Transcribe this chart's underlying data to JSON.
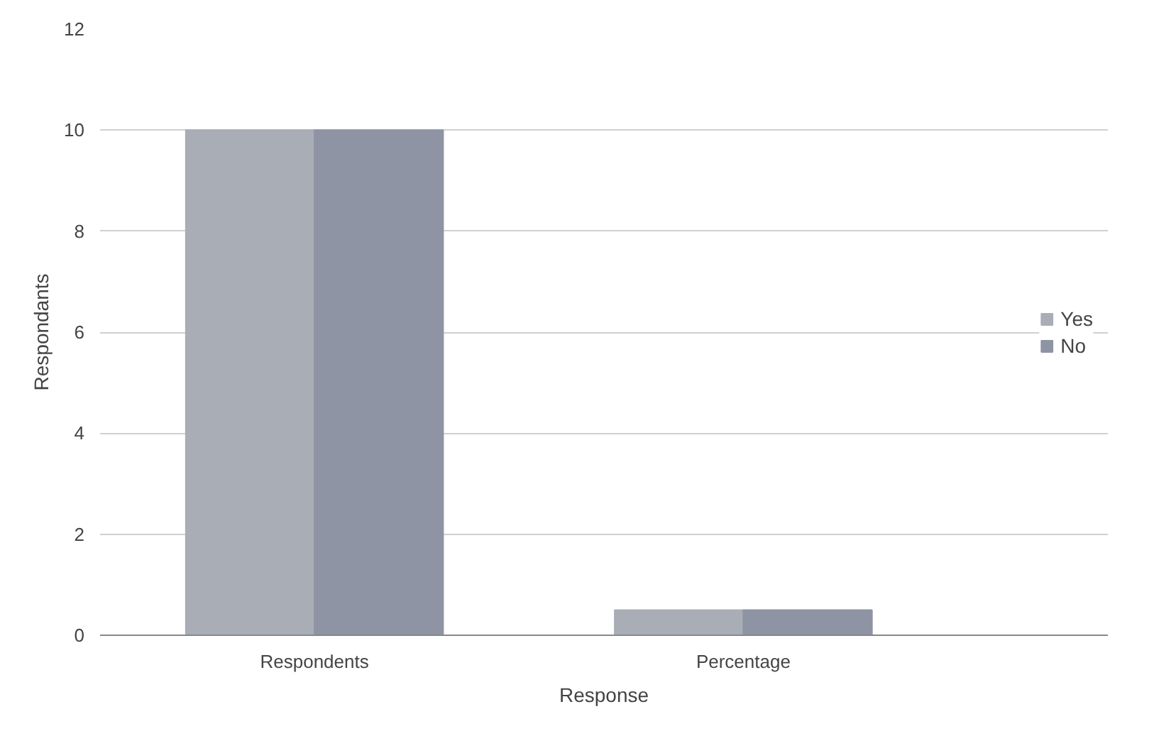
{
  "chart_data": {
    "type": "bar",
    "xlabel": "Response",
    "ylabel": "Respondants",
    "categories": [
      "Respondents",
      "Percentage"
    ],
    "series": [
      {
        "name": "Yes",
        "color": "#a9adb6",
        "values": [
          10,
          0.5
        ]
      },
      {
        "name": "No",
        "color": "#8e94a3",
        "values": [
          10,
          0.5
        ]
      }
    ],
    "ylim": [
      0,
      12
    ],
    "yticks": [
      0,
      2,
      4,
      6,
      8,
      10,
      12
    ],
    "grid": "y",
    "legend": "right"
  }
}
